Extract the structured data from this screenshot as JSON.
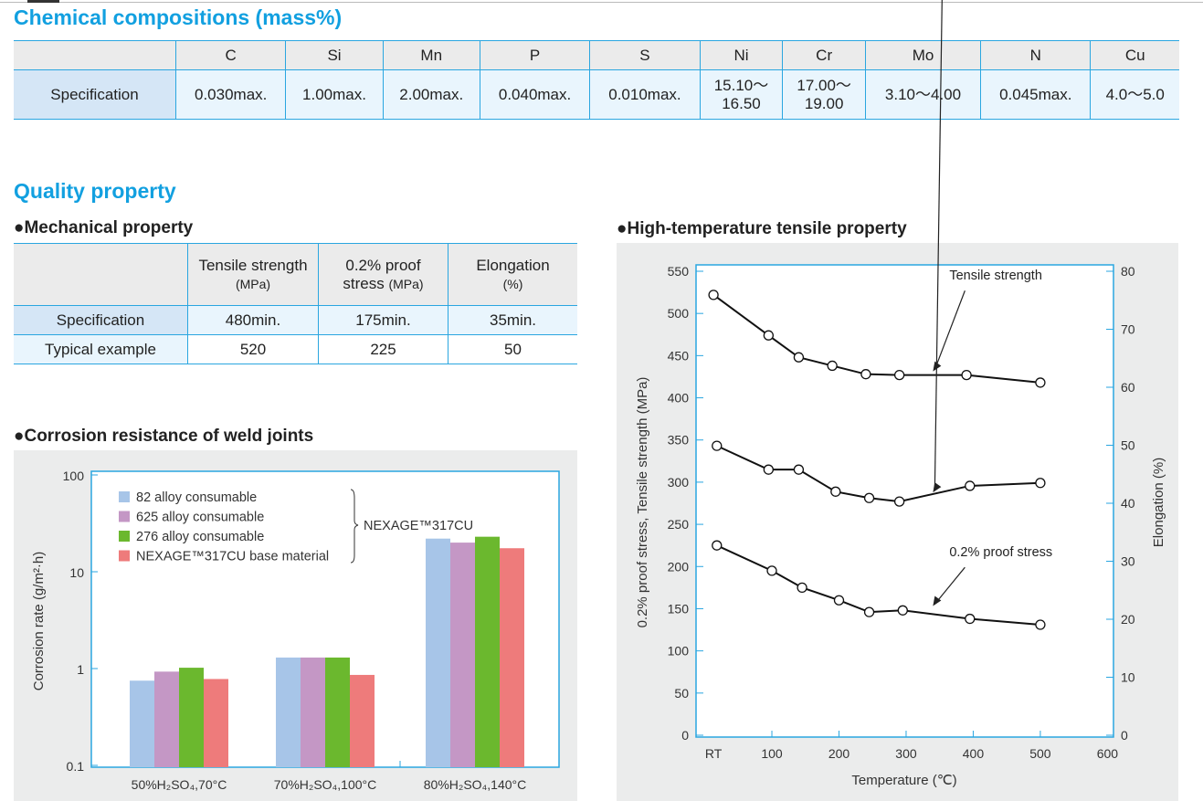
{
  "chem": {
    "title": "Chemical compositions (mass%)",
    "row_label": "Specification",
    "headers": [
      "C",
      "Si",
      "Mn",
      "P",
      "S",
      "Ni",
      "Cr",
      "Mo",
      "N",
      "Cu"
    ],
    "values": [
      "0.030max.",
      "1.00max.",
      "2.00max.",
      "0.040max.",
      "0.010max.",
      "15.10〜\n16.50",
      "17.00〜\n19.00",
      "3.10〜4.00",
      "0.045max.",
      "4.0〜5.0"
    ]
  },
  "quality": {
    "title": "Quality property",
    "mech": {
      "title": "●Mechanical property",
      "headers": [
        {
          "l1": "Tensile strength",
          "l2": "(MPa)"
        },
        {
          "l1": "0.2% proof",
          "l2": "stress",
          "l3": "(MPa)"
        },
        {
          "l1": "Elongation",
          "l2": "(%)"
        }
      ],
      "rows": [
        {
          "label": "Specification",
          "values": [
            "480min.",
            "175min.",
            "35min."
          ]
        },
        {
          "label": "Typical example",
          "values": [
            "520",
            "225",
            "50"
          ]
        }
      ]
    },
    "corr_title": "●Corrosion resistance of weld joints",
    "ht_title": "●High-temperature tensile property"
  },
  "chart_data": [
    {
      "type": "bar",
      "title": "Corrosion resistance of weld joints",
      "ylabel": "Corrosion rate (g/m²·h)",
      "yscale": "log",
      "ylim": [
        0.1,
        100
      ],
      "yticks": [
        "100",
        "10",
        "1",
        "0.1"
      ],
      "categories": [
        "50%H₂SO₄,70°C",
        "70%H₂SO₄,100°C",
        "80%H₂SO₄,140°C"
      ],
      "series": [
        {
          "name": "82 alloy consumable",
          "color": "#a7c5e8",
          "values": [
            0.75,
            1.3,
            22
          ]
        },
        {
          "name": "625 alloy consumable",
          "color": "#c497c5",
          "values": [
            0.93,
            1.3,
            20
          ]
        },
        {
          "name": "276 alloy consumable",
          "color": "#6bb82e",
          "values": [
            1.02,
            1.3,
            23
          ]
        },
        {
          "name": "NEXAGE™317CU base material",
          "color": "#ee7b7b",
          "values": [
            0.78,
            0.86,
            17.5
          ]
        }
      ],
      "bracket_label": "NEXAGE™317CU",
      "legend": "top-left"
    },
    {
      "type": "line",
      "title": "High-temperature tensile property",
      "xlabel": "Temperature (℃)",
      "ylabel": "0.2% proof stress, Tensile strength (MPa)",
      "y2label": "Elongation (%)",
      "xlim": [
        -13,
        609
      ],
      "ylim": [
        0,
        550
      ],
      "y2lim": [
        0,
        80
      ],
      "xticks": [
        {
          "v": 13,
          "l": "RT"
        },
        {
          "v": 100,
          "l": "100"
        },
        {
          "v": 200,
          "l": "200"
        },
        {
          "v": 300,
          "l": "300"
        },
        {
          "v": 400,
          "l": "400"
        },
        {
          "v": 500,
          "l": "500"
        },
        {
          "v": 600,
          "l": "600"
        }
      ],
      "yticks": [
        0,
        50,
        100,
        150,
        200,
        250,
        300,
        350,
        400,
        450,
        500,
        550
      ],
      "y2ticks": [
        0,
        10,
        20,
        30,
        40,
        50,
        60,
        70,
        80
      ],
      "series": [
        {
          "name": "Tensile strength",
          "axis": "left",
          "x": [
            13,
            95,
            140,
            190,
            240,
            290,
            390,
            500
          ],
          "y": [
            522,
            474,
            448,
            438,
            428,
            427,
            427,
            418
          ],
          "label_at": [
            340,
            540
          ],
          "arrow_to": [
            340,
            428
          ]
        },
        {
          "name": "Elongation",
          "axis": "right",
          "x": [
            18,
            95,
            140,
            195,
            245,
            290,
            395,
            500
          ],
          "y": [
            49.9,
            45.8,
            45.8,
            42.0,
            40.9,
            40.3,
            43.0,
            43.5
          ],
          "label_at": [
            340,
            395
          ],
          "arrow_to": [
            340,
            41.4
          ]
        },
        {
          "name": "0.2% proof stress",
          "axis": "left",
          "x": [
            18,
            100,
            145,
            200,
            245,
            295,
            395,
            500
          ],
          "y": [
            225,
            195,
            175,
            160,
            146,
            148,
            138,
            131
          ],
          "label_at": [
            340,
            212
          ],
          "arrow_to": [
            340,
            150
          ]
        }
      ]
    }
  ]
}
